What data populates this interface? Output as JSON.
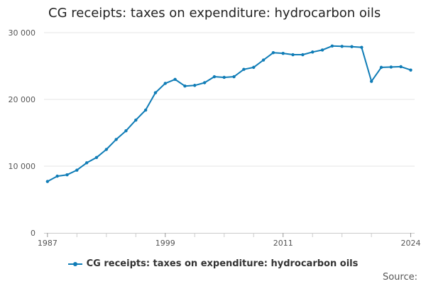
{
  "chart_data": {
    "type": "line",
    "title": "CG receipts: taxes on expenditure: hydrocarbon oils",
    "xlabel": "",
    "ylabel": "",
    "x": [
      1987,
      1988,
      1989,
      1990,
      1991,
      1992,
      1993,
      1994,
      1995,
      1996,
      1997,
      1998,
      1999,
      2000,
      2001,
      2002,
      2003,
      2004,
      2005,
      2006,
      2007,
      2008,
      2009,
      2010,
      2011,
      2012,
      2013,
      2014,
      2015,
      2016,
      2017,
      2018,
      2019,
      2020,
      2021,
      2022,
      2023,
      2024
    ],
    "series": [
      {
        "name": "CG receipts: taxes on expenditure: hydrocarbon oils",
        "color": "#0f7cb6",
        "values": [
          7700,
          8500,
          8700,
          9400,
          10500,
          11300,
          12500,
          14000,
          15300,
          16900,
          18400,
          21000,
          22400,
          23000,
          22000,
          22100,
          22500,
          23400,
          23300,
          23400,
          24500,
          24800,
          25900,
          27000,
          26900,
          26700,
          26700,
          27100,
          27400,
          28000,
          27950,
          27900,
          27800,
          22700,
          24800,
          24850,
          24900,
          24400
        ]
      }
    ],
    "ylim": [
      0,
      30000
    ],
    "yticks": [
      0,
      10000,
      20000,
      30000
    ],
    "ytick_labels": [
      "0",
      "10 000",
      "20 000",
      "30 000"
    ],
    "xticks": [
      1987,
      1999,
      2011,
      2024
    ],
    "xtick_labels": [
      "1987",
      "1999",
      "2011",
      "2024"
    ],
    "minor_xticks": [
      1990,
      1993,
      1996,
      2002,
      2005,
      2008,
      2014,
      2017,
      2020
    ],
    "grid": true,
    "legend": "bottom-center"
  },
  "legend_label": "CG receipts: taxes on expenditure: hydrocarbon oils",
  "source_label": "Source:"
}
